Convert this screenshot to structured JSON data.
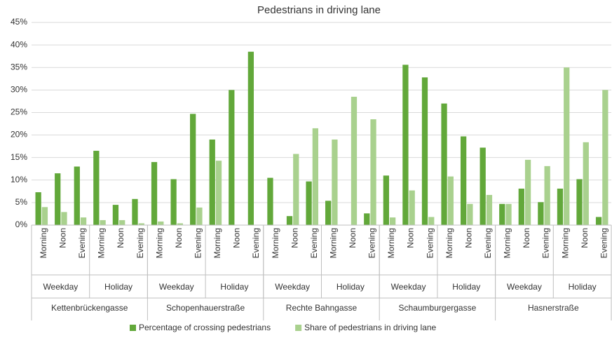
{
  "chart_data": {
    "type": "bar",
    "title": "Pedestrians in driving lane",
    "categories": [
      "Morning",
      "Noon",
      "Evening",
      "Morning",
      "Noon",
      "Evening",
      "Morning",
      "Noon",
      "Evening",
      "Morning",
      "Noon",
      "Evening",
      "Morning",
      "Noon",
      "Evening",
      "Morning",
      "Noon",
      "Evening",
      "Morning",
      "Noon",
      "Evening",
      "Morning",
      "Noon",
      "Evening",
      "Morning",
      "Noon",
      "Evening",
      "Morning",
      "Noon",
      "Evening"
    ],
    "category_levels": [
      [
        "Weekday",
        "Holiday",
        "Weekday",
        "Holiday",
        "Weekday",
        "Holiday",
        "Weekday",
        "Holiday",
        "Weekday",
        "Holiday"
      ],
      [
        "Kettenbrückengasse",
        "Schopenhauerstraße",
        "Rechte Bahngasse",
        "Schaumburgergasse",
        "Hasnerstraße"
      ]
    ],
    "series": [
      {
        "name": "Percentage of crossing pedestrians",
        "color": "#62a83a",
        "values": [
          7.3,
          11.5,
          13,
          16.5,
          4.5,
          5.8,
          14,
          10.2,
          24.7,
          19,
          30,
          38.5,
          10.5,
          2,
          9.7,
          5.4,
          0,
          2.6,
          11,
          35.6,
          32.8,
          27,
          19.7,
          17.2,
          4.7,
          8.1,
          5.1,
          8.1,
          10.2,
          1.8
        ]
      },
      {
        "name": "Share of pedestrians in driving lane",
        "color": "#a9d18e",
        "values": [
          4,
          2.9,
          1.7,
          1.1,
          1.1,
          0.4,
          0.8,
          0.4,
          3.9,
          14.3,
          0,
          0,
          0,
          15.8,
          21.5,
          19,
          28.5,
          23.5,
          1.7,
          7.7,
          1.8,
          10.8,
          4.7,
          6.7,
          4.7,
          14.5,
          13.1,
          35,
          18.4,
          30
        ]
      }
    ],
    "ylim": [
      0,
      45
    ],
    "yticks": [
      {
        "value": 0,
        "label": "0%"
      },
      {
        "value": 5,
        "label": "5%"
      },
      {
        "value": 10,
        "label": "10%"
      },
      {
        "value": 15,
        "label": "15%"
      },
      {
        "value": 20,
        "label": "20%"
      },
      {
        "value": 25,
        "label": "25%"
      },
      {
        "value": 30,
        "label": "30%"
      },
      {
        "value": 35,
        "label": "35%"
      },
      {
        "value": 40,
        "label": "40%"
      },
      {
        "value": 45,
        "label": "45%"
      }
    ],
    "grid": true,
    "legend": "bottom"
  }
}
